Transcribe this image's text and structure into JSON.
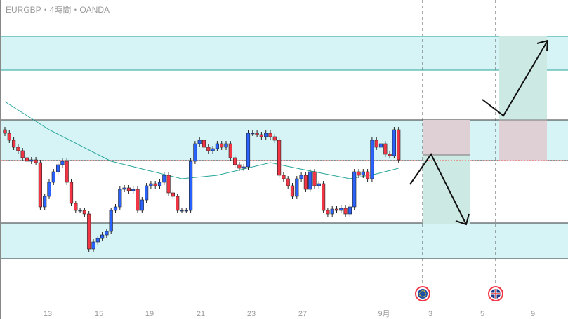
{
  "header": {
    "title": "EURGBP・4時間・OANDA"
  },
  "colors": {
    "up": "#2962ff",
    "down": "#f23645",
    "zone": "#d6f3f6",
    "ma": "#26a69a",
    "profit": "#cde9e3",
    "loss": "#dfd0d6",
    "line": "#ef5350"
  },
  "chart_data": {
    "type": "candlestick",
    "symbol": "EURGBP",
    "timeframe": "4時間",
    "broker": "OANDA",
    "ylim": [
      0,
      400
    ],
    "wick": 4,
    "closes": [
      210,
      200,
      190,
      185,
      175,
      170,
      172,
      168,
      105,
      120,
      140,
      155,
      165,
      170,
      140,
      110,
      100,
      100,
      95,
      45,
      55,
      60,
      65,
      70,
      100,
      105,
      130,
      132,
      128,
      130,
      100,
      115,
      135,
      138,
      135,
      140,
      150,
      125,
      120,
      100,
      100,
      100,
      170,
      195,
      200,
      190,
      185,
      188,
      195,
      190,
      195,
      175,
      165,
      160,
      162,
      210,
      210,
      208,
      205,
      210,
      205,
      200,
      150,
      145,
      135,
      120,
      145,
      150,
      130,
      155,
      135,
      138,
      100,
      95,
      102,
      100,
      103,
      95,
      105,
      155,
      150,
      155,
      145,
      200,
      190,
      195,
      180,
      178,
      215,
      172
    ],
    "moving_average": [
      [
        0,
        255
      ],
      [
        10,
        215
      ],
      [
        24,
        170
      ],
      [
        40,
        145
      ],
      [
        48,
        150
      ],
      [
        60,
        168
      ],
      [
        66,
        160
      ],
      [
        78,
        145
      ],
      [
        84,
        152
      ],
      [
        89,
        160
      ]
    ],
    "zones": [
      [
        300,
        348
      ],
      [
        171,
        229
      ],
      [
        31,
        82
      ]
    ],
    "current_price_line": 171,
    "x_tick_labels": [
      "13",
      "15",
      "19",
      "21",
      "23",
      "27",
      "9月",
      "3",
      "5",
      "9"
    ],
    "events": [
      "eu-flag-icon",
      "uk-flag-icon"
    ]
  }
}
